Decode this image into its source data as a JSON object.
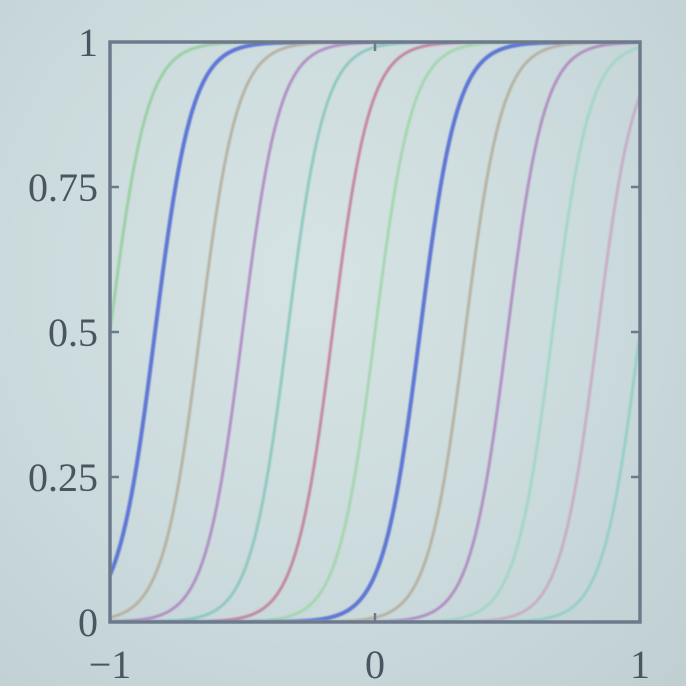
{
  "chart_data": {
    "type": "line",
    "title": "",
    "xlabel": "",
    "ylabel": "",
    "xlim": [
      -1,
      1
    ],
    "ylim": [
      0,
      1
    ],
    "grid": false,
    "legend": "none",
    "x_ticks": [
      -1,
      0,
      1
    ],
    "x_tick_labels": [
      "−1",
      "0",
      "1"
    ],
    "y_ticks": [
      0,
      0.25,
      0.5,
      0.75,
      1
    ],
    "y_tick_labels": [
      "0",
      "0.25",
      "0.5",
      "0.75",
      "1"
    ],
    "curve_form": "logistic sigmoid y = 1 / (1 + exp(-(x - c) / s))",
    "steepness_s": 0.07,
    "series": [
      {
        "center": -1.0,
        "color": "#90cf9a"
      },
      {
        "center": -0.83,
        "color": "#5a72d4"
      },
      {
        "center": -0.66,
        "color": "#b3ad9a"
      },
      {
        "center": -0.5,
        "color": "#ad85c0"
      },
      {
        "center": -0.33,
        "color": "#86c6bc"
      },
      {
        "center": -0.16,
        "color": "#c27a98"
      },
      {
        "center": 0.0,
        "color": "#9fd6a8"
      },
      {
        "center": 0.17,
        "color": "#5a72d4"
      },
      {
        "center": 0.34,
        "color": "#b3ad9a"
      },
      {
        "center": 0.5,
        "color": "#ad85c0"
      },
      {
        "center": 0.67,
        "color": "#9fd6c6"
      },
      {
        "center": 0.84,
        "color": "#c7a8c2"
      },
      {
        "center": 1.0,
        "color": "#8fcfc3"
      }
    ]
  }
}
